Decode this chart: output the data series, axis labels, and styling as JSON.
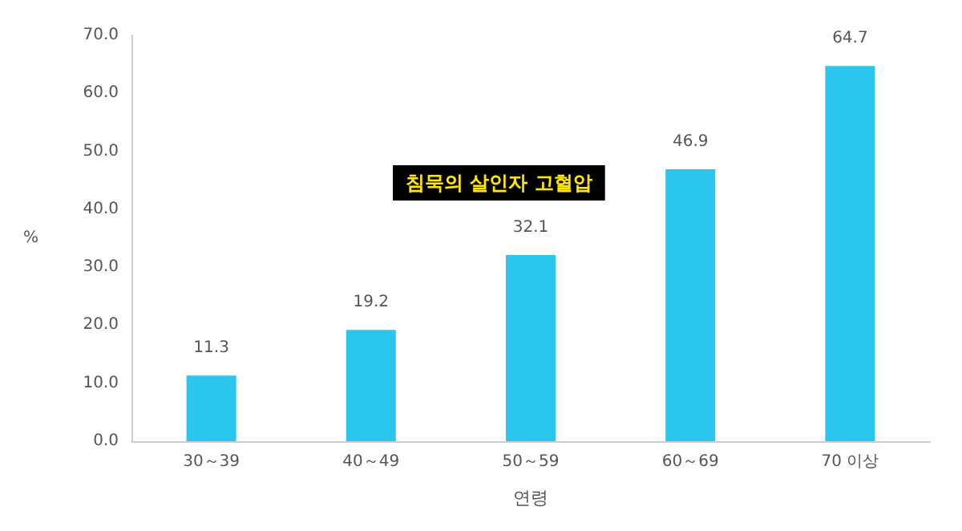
{
  "chart_data": {
    "type": "bar",
    "xlabel": "연령",
    "ylabel": "%",
    "categories": [
      "30～39",
      "40～49",
      "50～59",
      "60～69",
      "70 이상"
    ],
    "values": [
      11.3,
      19.2,
      32.1,
      46.9,
      64.7
    ],
    "value_labels": [
      "11.3",
      "19.2",
      "32.1",
      "46.9",
      "64.7"
    ],
    "color": "#2bc6ee",
    "ylim": [
      0,
      70
    ],
    "yticks": [
      {
        "value": 0,
        "label": "0.0"
      },
      {
        "value": 10,
        "label": "10.0"
      },
      {
        "value": 20,
        "label": "20.0"
      },
      {
        "value": 30,
        "label": "30.0"
      },
      {
        "value": 40,
        "label": "40.0"
      },
      {
        "value": 50,
        "label": "50.0"
      },
      {
        "value": 60,
        "label": "60.0"
      },
      {
        "value": 70,
        "label": "70.0"
      }
    ],
    "grid": false,
    "annotations": [
      "침묵의 살인자 고혈압"
    ]
  }
}
